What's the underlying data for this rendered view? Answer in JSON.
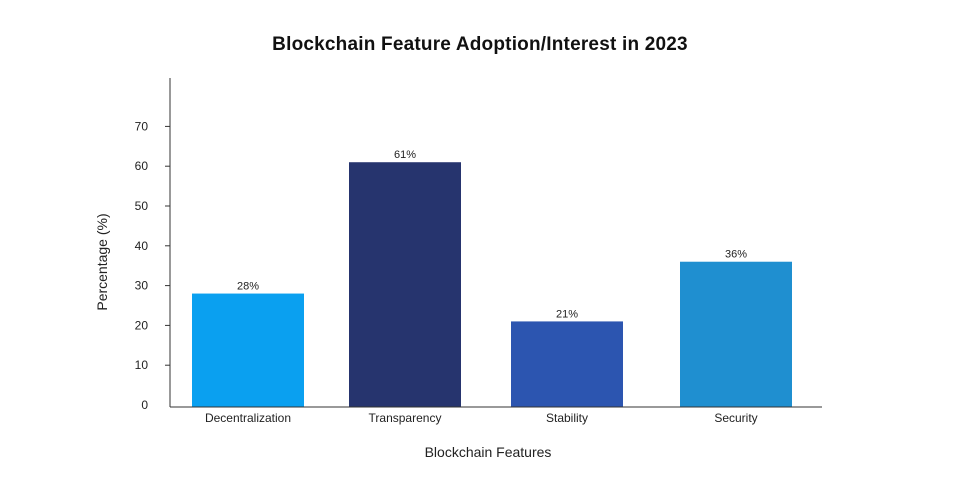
{
  "chart_data": {
    "type": "bar",
    "title": "Blockchain Feature Adoption/Interest in 2023",
    "xlabel": "Blockchain Features",
    "ylabel": "Percentage (%)",
    "categories": [
      "Decentralization",
      "Transparency",
      "Stability",
      "Security"
    ],
    "values": [
      28,
      61,
      21,
      36
    ],
    "value_labels": [
      "28%",
      "61%",
      "21%",
      "36%"
    ],
    "bar_colors": [
      "#0aa0f0",
      "#26346e",
      "#2c55b0",
      "#1f8fd0"
    ],
    "y_ticks": [
      0,
      10,
      20,
      30,
      40,
      50,
      60,
      70
    ],
    "ylim": [
      0,
      80
    ],
    "grid": false,
    "legend": "none"
  }
}
